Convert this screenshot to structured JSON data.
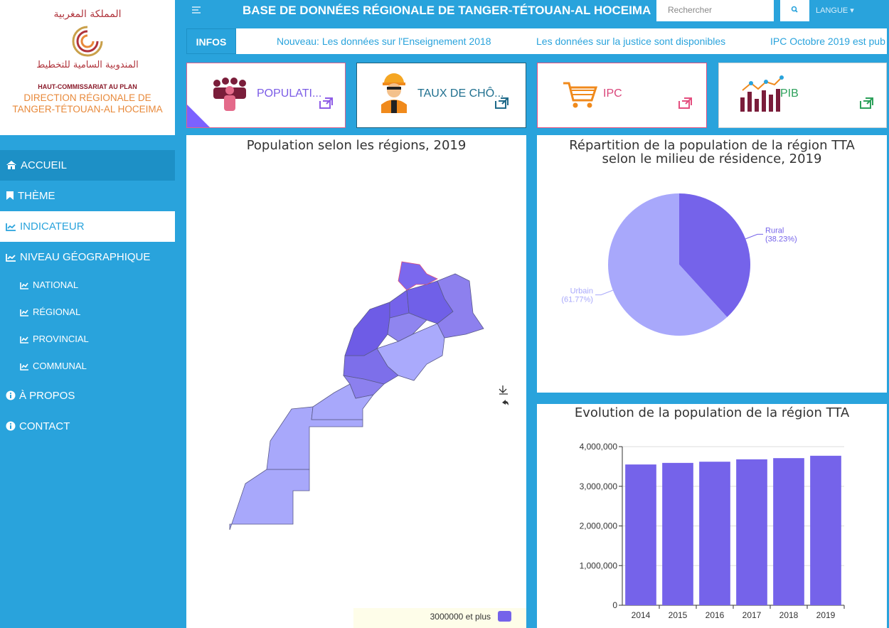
{
  "logo": {
    "kingdom": "المملكة المغربية",
    "agency_ar": "المندوبية السامية للتخطيط",
    "agency": "HAUT-COMMISSARIAT AU PLAN",
    "direction_1": "DIRECTION RÉGIONALE DE",
    "direction_2": "TANGER-TÉTOUAN-AL HOCEIMA"
  },
  "header": {
    "title": "BASE DE DONNÉES RÉGIONALE DE TANGER-TÉTOUAN-AL HOCEIMA",
    "search_placeholder": "Rechercher",
    "language": "LANGUE"
  },
  "sidebar": {
    "menu": [
      "ACCUEIL",
      "THÈME",
      "INDICATEUR",
      "NIVEAU GÉOGRAPHIQUE"
    ],
    "submenu": [
      "NATIONAL",
      "RÉGIONAL",
      "PROVINCIAL",
      "COMMUNAL"
    ],
    "footer_menu": [
      "À PROPOS",
      "CONTACT"
    ]
  },
  "ticker": {
    "label": "INFOS",
    "items": [
      "Nouveau: Les données sur l'Enseignement 2018",
      "Les données sur la justice sont disponibles",
      "IPC Octobre 2019 est pub"
    ]
  },
  "cards": [
    "POPULATI...",
    "TAUX DE CHÔ...",
    "IPC",
    "PIB"
  ],
  "chart_data": [
    {
      "type": "map",
      "title": "Population selon les régions, 2019",
      "legend": [
        "3000000 et plus"
      ],
      "color": "#7563ea"
    },
    {
      "type": "pie",
      "title": "Répartition de la population de la région TTA selon le milieu de résidence, 2019",
      "categories": [
        "Rural",
        "Urbain"
      ],
      "values": [
        38.23,
        61.77
      ],
      "value_labels": [
        "(38.23%)",
        "(61.77%)"
      ],
      "colors": [
        "#7563ea",
        "#a8a8fb"
      ]
    },
    {
      "type": "bar",
      "title": "Evolution de la population de la région TTA",
      "categories": [
        "2014",
        "2015",
        "2016",
        "2017",
        "2018",
        "2019"
      ],
      "values": [
        3550000,
        3590000,
        3620000,
        3680000,
        3710000,
        3770000
      ],
      "color": "#7563ea",
      "ylim": [
        0,
        4000000
      ],
      "yticks": [
        0,
        {
          "value": 1000000,
          "label": "1,000,000"
        },
        {
          "value": 2000000,
          "label": "2,000,000"
        },
        {
          "value": 3000000,
          "label": "3,000,000"
        },
        {
          "value": 4000000,
          "label": "4,000,000"
        }
      ],
      "grid": true
    }
  ]
}
